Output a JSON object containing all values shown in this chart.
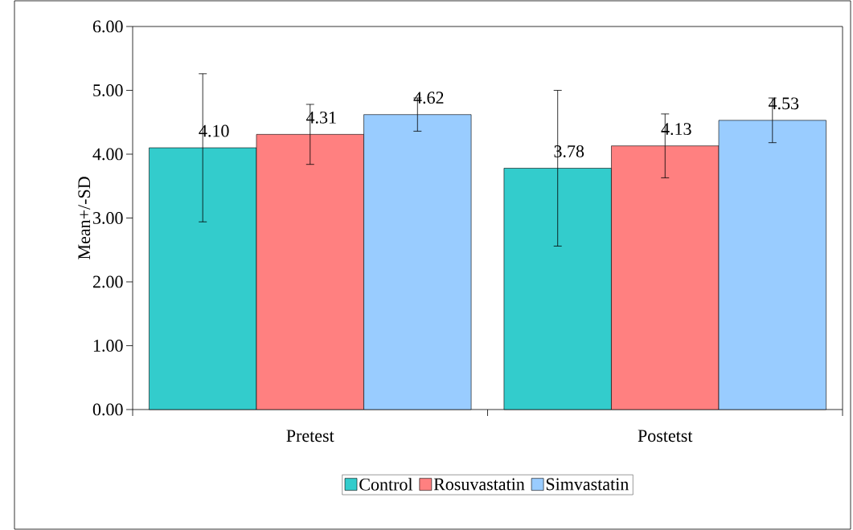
{
  "chart_data": {
    "type": "bar",
    "ylabel": "Mean+/-SD",
    "categories": [
      "Pretest",
      "Postetst"
    ],
    "series": [
      {
        "name": "Control",
        "color": "#33cccc",
        "values": [
          4.1,
          3.78
        ],
        "errors": [
          1.16,
          1.22
        ],
        "value_labels": [
          "4.10",
          "3.78"
        ]
      },
      {
        "name": "Rosuvastatin",
        "color": "#ff8080",
        "values": [
          4.31,
          4.13
        ],
        "errors": [
          0.47,
          0.5
        ],
        "value_labels": [
          "4.31",
          "4.13"
        ]
      },
      {
        "name": "Simvastatin",
        "color": "#99ccff",
        "values": [
          4.62,
          4.53
        ],
        "errors": [
          0.26,
          0.35
        ],
        "value_labels": [
          "4.62",
          "4.53"
        ]
      }
    ],
    "ylim": [
      0,
      6
    ],
    "yticks": [
      {
        "value": 0,
        "label": "0.00"
      },
      {
        "value": 1,
        "label": "1.00"
      },
      {
        "value": 2,
        "label": "2.00"
      },
      {
        "value": 3,
        "label": "3.00"
      },
      {
        "value": 4,
        "label": "4.00"
      },
      {
        "value": 5,
        "label": "5.00"
      },
      {
        "value": 6,
        "label": "6.00"
      }
    ],
    "grid": false,
    "legend": "bottom"
  }
}
